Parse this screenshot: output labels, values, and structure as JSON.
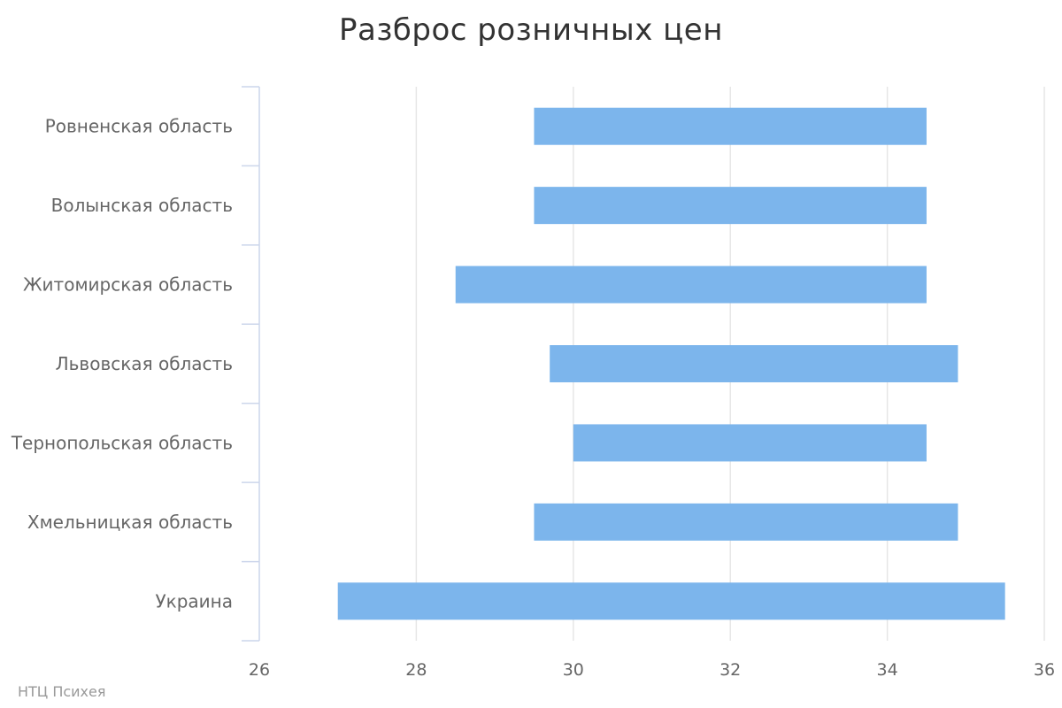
{
  "chart_data": {
    "type": "bar",
    "orientation": "horizontal",
    "title": "Разброс розничных цен",
    "categories": [
      "Ровненская область",
      "Волынская область",
      "Житомирская область",
      "Львовская область",
      "Тернопольская область",
      "Хмельницкая область",
      "Украина"
    ],
    "ranges": [
      [
        29.5,
        34.5
      ],
      [
        29.5,
        34.5
      ],
      [
        28.5,
        34.5
      ],
      [
        29.7,
        34.9
      ],
      [
        30.0,
        34.5
      ],
      [
        29.5,
        34.9
      ],
      [
        27.0,
        35.5
      ]
    ],
    "xlim": [
      26,
      36
    ],
    "xticks": [
      26,
      28,
      30,
      32,
      34,
      36
    ],
    "grid": true,
    "legend": "none",
    "bar_color": "#7cb5ec",
    "grid_color": "#e6e6e6",
    "axis_color": "#ccd6eb"
  },
  "credits": "НТЦ Психея"
}
